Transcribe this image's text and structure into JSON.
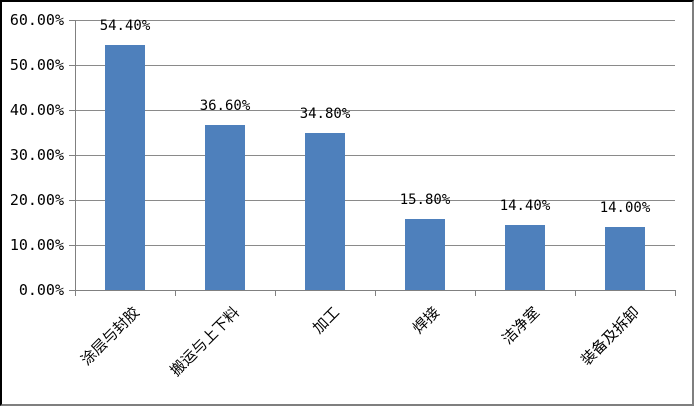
{
  "chart_data": {
    "type": "bar",
    "title": "",
    "xlabel": "",
    "ylabel": "",
    "legend": "none",
    "grid": true,
    "categories": [
      "涂层与封胶",
      "搬运与上下料",
      "加工",
      "焊接",
      "洁净室",
      "装备及拆卸"
    ],
    "values": [
      54.4,
      36.6,
      34.8,
      15.8,
      14.4,
      14.0
    ],
    "bar_labels": [
      "54.40%",
      "36.60%",
      "34.80%",
      "15.80%",
      "14.40%",
      "14.00%"
    ],
    "y_axis": {
      "min": 0,
      "max": 60,
      "tick_step": 10,
      "tick_labels": [
        "0.00%",
        "10.00%",
        "20.00%",
        "30.00%",
        "40.00%",
        "50.00%",
        "60.00%"
      ]
    },
    "colors": {
      "bar": "#4E80BC",
      "gridline": "#8A8A8A",
      "axis": "#808080",
      "text": "#000000",
      "background": "#FFFFFF"
    }
  }
}
